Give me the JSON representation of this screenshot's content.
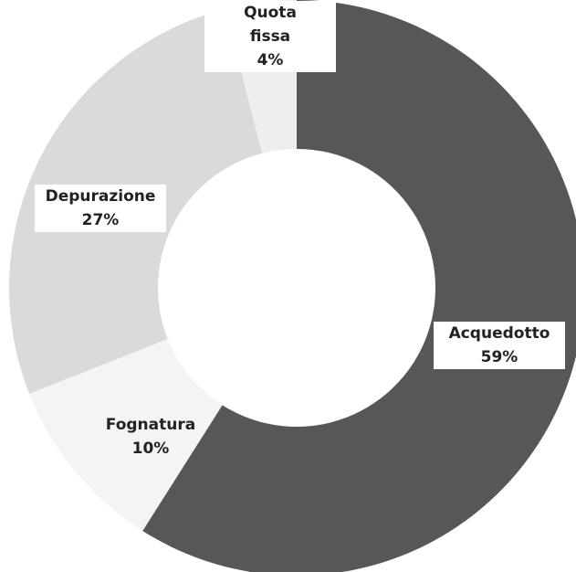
{
  "chart_data": {
    "type": "pie",
    "categories": [
      "Acquedotto",
      "Fognatura",
      "Depurazione",
      "Quota fissa"
    ],
    "category_lines": [
      [
        "Acquedotto"
      ],
      [
        "Fognatura"
      ],
      [
        "Depurazione"
      ],
      [
        "Quota",
        "fissa"
      ]
    ],
    "values": [
      59,
      10,
      27,
      4
    ],
    "value_labels": [
      "59%",
      "10%",
      "27%",
      "4%"
    ],
    "colors": [
      "#575757",
      "#f4f4f4",
      "#dadada",
      "#eeeeee"
    ],
    "donut": true
  }
}
